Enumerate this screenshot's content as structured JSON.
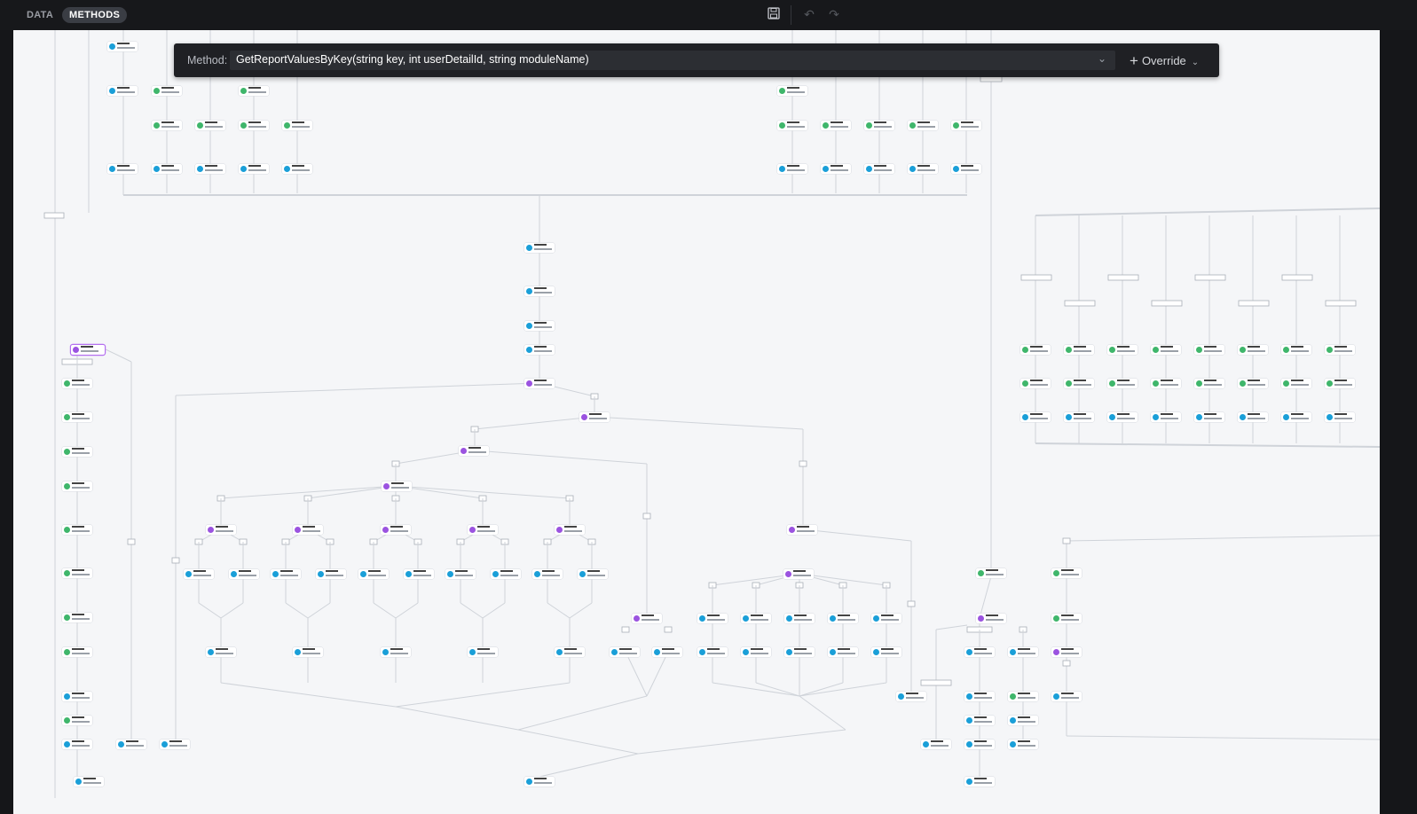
{
  "tabs": {
    "data": "DATA",
    "methods": "METHODS"
  },
  "toolbar": {
    "save_icon": "save-icon",
    "undo_icon": "undo-icon",
    "redo_icon": "redo-icon"
  },
  "method_bar": {
    "label": "Method:",
    "selected_method": "GetReportValuesByKey(string key, int userDetailId, string moduleName)",
    "override_label": "Override"
  },
  "colors": {
    "blue": "#1a9fd8",
    "green": "#3fb66b",
    "purple": "#9b53e0",
    "canvas": "#f5f6f8",
    "topbar": "#17181b"
  }
}
